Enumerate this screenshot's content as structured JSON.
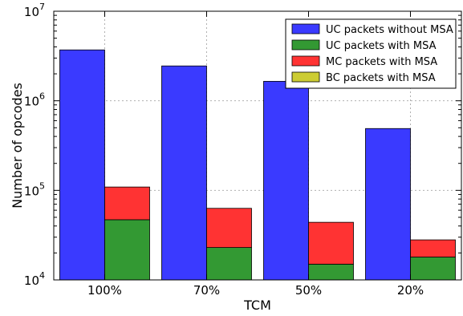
{
  "chart_data": {
    "type": "bar",
    "stacked_series": true,
    "xlabel": "TCM",
    "ylabel": "Number of opcodes",
    "yscale": "log",
    "ylim": [
      10000,
      10000000
    ],
    "grid": true,
    "legend_position": "top-right",
    "categories": [
      "100%",
      "70%",
      "50%",
      "20%"
    ],
    "y_ticks": [
      {
        "value": 10000,
        "base": "10",
        "exp": "4"
      },
      {
        "value": 100000,
        "base": "10",
        "exp": "5"
      },
      {
        "value": 1000000,
        "base": "10",
        "exp": "6"
      },
      {
        "value": 10000000,
        "base": "10",
        "exp": "7"
      }
    ],
    "series": [
      {
        "name": "UC packets without MSA",
        "color": "#3a3aff",
        "group": "left",
        "values": [
          3700000,
          2450000,
          1650000,
          490000
        ]
      },
      {
        "name": "UC packets with MSA",
        "color": "#339933",
        "group": "right",
        "values": [
          47000,
          23000,
          15000,
          18000
        ]
      },
      {
        "name": "MC packets with MSA",
        "color": "#ff3333",
        "group": "right",
        "values": [
          62000,
          40000,
          29000,
          10000
        ]
      },
      {
        "name": "BC packets with MSA",
        "color": "#cccc33",
        "group": "right",
        "values": [
          0,
          0,
          0,
          0
        ]
      }
    ]
  }
}
